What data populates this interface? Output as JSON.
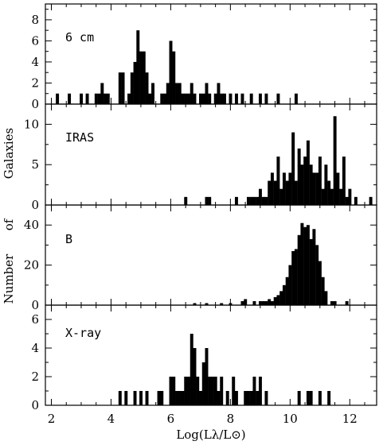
{
  "chart_data": {
    "type": "bar",
    "xlabel": "Log(Lλ/L⊙)",
    "xlim": [
      1.8,
      12.9
    ],
    "xticks": [
      2,
      4,
      6,
      8,
      10,
      12
    ],
    "ylabel_words": [
      "Number",
      "of",
      "Galaxies"
    ],
    "bin_width": 0.1,
    "panels": [
      {
        "label": "6 cm",
        "ylim": [
          0,
          9.5
        ],
        "yticks": [
          0,
          2,
          4,
          6,
          8
        ],
        "x": [
          2.2,
          2.6,
          3.0,
          3.2,
          3.5,
          3.6,
          3.7,
          3.8,
          3.9,
          4.3,
          4.4,
          4.6,
          4.7,
          4.8,
          4.9,
          5.0,
          5.1,
          5.2,
          5.3,
          5.4,
          5.7,
          5.8,
          5.9,
          6.0,
          6.1,
          6.2,
          6.3,
          6.4,
          6.5,
          6.6,
          6.7,
          6.8,
          7.0,
          7.1,
          7.2,
          7.3,
          7.5,
          7.6,
          7.7,
          7.8,
          8.0,
          8.2,
          8.4,
          8.7,
          9.0,
          9.2,
          9.6,
          10.2
        ],
        "values": [
          1,
          1,
          1,
          1,
          1,
          1,
          2,
          1,
          1,
          3,
          3,
          1,
          3,
          4,
          7,
          5,
          5,
          3,
          1,
          2,
          1,
          1,
          2,
          6,
          5,
          2,
          2,
          1,
          1,
          1,
          2,
          1,
          1,
          1,
          2,
          1,
          1,
          2,
          1,
          1,
          1,
          1,
          1,
          1,
          1,
          1,
          1,
          1
        ]
      },
      {
        "label": "IRAS",
        "ylim": [
          0,
          12.5
        ],
        "yticks": [
          0,
          5,
          10
        ],
        "x": [
          6.5,
          7.2,
          7.3,
          8.2,
          8.6,
          8.7,
          8.8,
          8.9,
          9.0,
          9.1,
          9.2,
          9.3,
          9.4,
          9.5,
          9.6,
          9.7,
          9.8,
          9.9,
          10.0,
          10.1,
          10.2,
          10.3,
          10.4,
          10.5,
          10.6,
          10.7,
          10.8,
          10.9,
          11.0,
          11.1,
          11.2,
          11.3,
          11.4,
          11.5,
          11.6,
          11.7,
          11.8,
          11.9,
          12.0,
          12.2,
          12.7
        ],
        "values": [
          1,
          1,
          1,
          1,
          1,
          1,
          1,
          1,
          2,
          1,
          1,
          3,
          4,
          3,
          6,
          2,
          4,
          3,
          4,
          9,
          3,
          7,
          5,
          6,
          8,
          5,
          4,
          4,
          6,
          2,
          5,
          3,
          2,
          11,
          4,
          2,
          6,
          1,
          2,
          1,
          1
        ]
      },
      {
        "label": "B",
        "ylim": [
          0,
          50
        ],
        "yticks": [
          0,
          20,
          40
        ],
        "x": [
          6.8,
          7.2,
          7.7,
          8.0,
          8.4,
          8.5,
          8.8,
          9.0,
          9.1,
          9.2,
          9.3,
          9.4,
          9.5,
          9.6,
          9.7,
          9.8,
          9.9,
          10.0,
          10.1,
          10.2,
          10.3,
          10.4,
          10.5,
          10.6,
          10.7,
          10.8,
          10.9,
          11.0,
          11.1,
          11.2,
          11.4,
          11.5,
          11.9
        ],
        "values": [
          1,
          1,
          1,
          1,
          2,
          3,
          2,
          2,
          2,
          2,
          3,
          2,
          4,
          5,
          7,
          10,
          14,
          20,
          27,
          28,
          35,
          41,
          39,
          40,
          33,
          38,
          30,
          22,
          14,
          7,
          2,
          2,
          2
        ]
      },
      {
        "label": "X-ray",
        "ylim": [
          0,
          7
        ],
        "yticks": [
          0,
          2,
          4,
          6
        ],
        "x": [
          4.3,
          4.5,
          4.8,
          5.0,
          5.2,
          5.6,
          5.7,
          6.0,
          6.1,
          6.2,
          6.3,
          6.4,
          6.5,
          6.6,
          6.7,
          6.8,
          6.9,
          7.0,
          7.1,
          7.2,
          7.3,
          7.4,
          7.5,
          7.6,
          7.7,
          7.9,
          8.1,
          8.2,
          8.5,
          8.6,
          8.7,
          8.8,
          8.9,
          9.0,
          9.2,
          10.3,
          10.6,
          10.7,
          11.0,
          11.3
        ],
        "values": [
          1,
          1,
          1,
          1,
          1,
          1,
          1,
          2,
          2,
          1,
          1,
          1,
          2,
          2,
          5,
          4,
          2,
          1,
          3,
          4,
          2,
          2,
          2,
          1,
          2,
          1,
          2,
          1,
          1,
          1,
          1,
          2,
          1,
          2,
          1,
          1,
          1,
          1,
          1,
          1
        ]
      }
    ]
  }
}
